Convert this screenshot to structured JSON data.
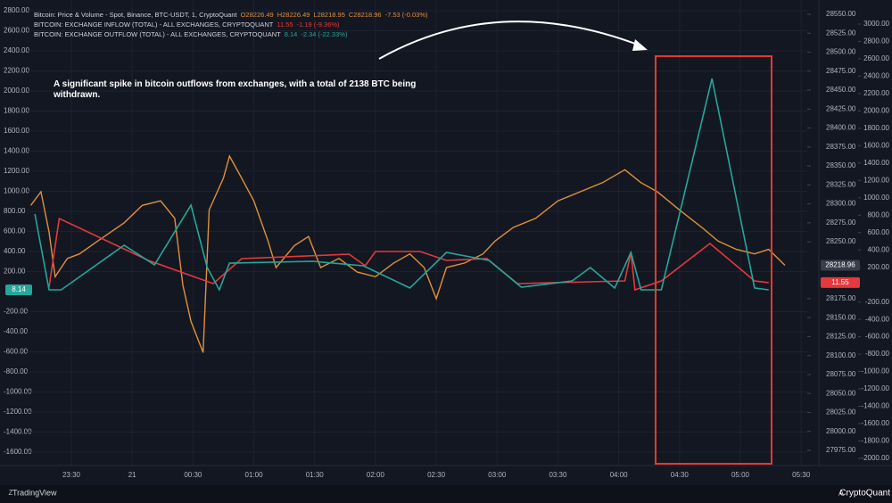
{
  "chart_data": {
    "type": "line",
    "legend_rows": [
      {
        "name": "Bitcoin: Price & Volume - Spot, Binance, BTC-USDT, 1, CryptoQuant",
        "stats": [
          "O28226.49",
          "H28226.49",
          "L28218.95",
          "C28218.96",
          "-7.53 (-0.03%)"
        ]
      },
      {
        "name": "BITCOIN: EXCHANGE INFLOW (TOTAL) - ALL EXCHANGES, CRYPTOQUANT",
        "stats": [
          "11.55",
          "-1.19 (-9.36%)"
        ]
      },
      {
        "name": "BITCOIN: EXCHANGE OUTFLOW (TOTAL) - ALL EXCHANGES, CRYPTOQUANT",
        "stats": [
          "8.14",
          "-2.34 (-22.33%)"
        ]
      }
    ],
    "annotation": "A significant spike in bitcoin outflows from exchanges, with a total of 2138 BTC being withdrawn.",
    "xlim": [
      8,
      393
    ],
    "xticks": [
      {
        "value": 30,
        "label": "23:30"
      },
      {
        "value": 60,
        "label": "21"
      },
      {
        "value": 90,
        "label": "00:30"
      },
      {
        "value": 120,
        "label": "01:00"
      },
      {
        "value": 150,
        "label": "01:30"
      },
      {
        "value": 180,
        "label": "02:00"
      },
      {
        "value": 210,
        "label": "02:30"
      },
      {
        "value": 240,
        "label": "03:00"
      },
      {
        "value": 270,
        "label": "03:30"
      },
      {
        "value": 300,
        "label": "04:00"
      },
      {
        "value": 330,
        "label": "04:30"
      },
      {
        "value": 360,
        "label": "05:00"
      },
      {
        "value": 390,
        "label": "05:30"
      }
    ],
    "ylim": [
      -1600,
      2800
    ],
    "yticks": [
      {
        "value": 2800,
        "label": "2800.00"
      },
      {
        "value": 2600,
        "label": "2600.00"
      },
      {
        "value": 2400,
        "label": "2400.00"
      },
      {
        "value": 2200,
        "label": "2200.00"
      },
      {
        "value": 2000,
        "label": "2000.00"
      },
      {
        "value": 1800,
        "label": "1800.00"
      },
      {
        "value": 1600,
        "label": "1600.00"
      },
      {
        "value": 1400,
        "label": "1400.00"
      },
      {
        "value": 1200,
        "label": "1200.00"
      },
      {
        "value": 1000,
        "label": "1000.00"
      },
      {
        "value": 800,
        "label": "800.00"
      },
      {
        "value": 600,
        "label": "600.00"
      },
      {
        "value": 400,
        "label": "400.00"
      },
      {
        "value": 200,
        "label": "200.00"
      },
      {
        "value": -200,
        "label": "-200.00"
      },
      {
        "value": -400,
        "label": "-400.00"
      },
      {
        "value": -600,
        "label": "-600.00"
      },
      {
        "value": -800,
        "label": "-800.00"
      },
      {
        "value": -1000,
        "label": "-1000.00"
      },
      {
        "value": -1200,
        "label": "-1200.00"
      },
      {
        "value": -1400,
        "label": "-1400.00"
      },
      {
        "value": -1600,
        "label": "-1600.00"
      }
    ],
    "y3lim": [
      27975,
      28550
    ],
    "y3ticks": [
      {
        "value": 28550,
        "label": "28550.00"
      },
      {
        "value": 28525,
        "label": "28525.00"
      },
      {
        "value": 28500,
        "label": "28500.00"
      },
      {
        "value": 28475,
        "label": "28475.00"
      },
      {
        "value": 28450,
        "label": "28450.00"
      },
      {
        "value": 28425,
        "label": "28425.00"
      },
      {
        "value": 28400,
        "label": "28400.00"
      },
      {
        "value": 28375,
        "label": "28375.00"
      },
      {
        "value": 28350,
        "label": "28350.00"
      },
      {
        "value": 28325,
        "label": "28325.00"
      },
      {
        "value": 28300,
        "label": "28300.00"
      },
      {
        "value": 28275,
        "label": "28275.00"
      },
      {
        "value": 28250,
        "label": "28250.00"
      },
      {
        "value": 28175,
        "label": "28175.00"
      },
      {
        "value": 28150,
        "label": "28150.00"
      },
      {
        "value": 28125,
        "label": "28125.00"
      },
      {
        "value": 28100,
        "label": "28100.00"
      },
      {
        "value": 28075,
        "label": "28075.00"
      },
      {
        "value": 28050,
        "label": "28050.00"
      },
      {
        "value": 28025,
        "label": "28025.00"
      },
      {
        "value": 28000,
        "label": "28000.00"
      },
      {
        "value": 27975,
        "label": "27975.00"
      }
    ],
    "y2lim": [
      -2000,
      3000
    ],
    "y2ticks": [
      {
        "value": 3000,
        "label": "3000.00"
      },
      {
        "value": 2800,
        "label": "2800.00"
      },
      {
        "value": 2600,
        "label": "2600.00"
      },
      {
        "value": 2400,
        "label": "2400.00"
      },
      {
        "value": 2200,
        "label": "2200.00"
      },
      {
        "value": 2000,
        "label": "2000.00"
      },
      {
        "value": 1800,
        "label": "1800.00"
      },
      {
        "value": 1600,
        "label": "1600.00"
      },
      {
        "value": 1400,
        "label": "1400.00"
      },
      {
        "value": 1200,
        "label": "1200.00"
      },
      {
        "value": 1000,
        "label": "1000.00"
      },
      {
        "value": 800,
        "label": "800.00"
      },
      {
        "value": 600,
        "label": "600.00"
      },
      {
        "value": 400,
        "label": "400.00"
      },
      {
        "value": 200,
        "label": "200.00"
      },
      {
        "value": -200,
        "label": "-200.00"
      },
      {
        "value": -400,
        "label": "-400.00"
      },
      {
        "value": -600,
        "label": "-600.00"
      },
      {
        "value": -800,
        "label": "-800.00"
      },
      {
        "value": -1000,
        "label": "-1000.00"
      },
      {
        "value": -1200,
        "label": "-1200.00"
      },
      {
        "value": -1400,
        "label": "-1400.00"
      },
      {
        "value": -1600,
        "label": "-1600.00"
      },
      {
        "value": -1800,
        "label": "-1800.00"
      },
      {
        "value": -2000,
        "label": "-2000.00"
      }
    ],
    "grid": true,
    "series": [
      {
        "name": "Bitcoin: Price & Volume - Spot, Binance, BTC-USDT, 1, CryptoQuant",
        "color": "#e0913a",
        "axis": "y3",
        "last_label": "28218.96",
        "x": [
          10,
          15,
          19,
          22,
          28,
          34,
          43,
          56,
          65,
          74,
          81,
          85,
          89,
          95,
          98,
          105,
          108,
          114,
          120,
          127,
          131,
          140,
          147,
          153,
          162,
          171,
          180,
          189,
          197,
          204,
          210,
          215,
          224,
          233,
          239,
          248,
          259,
          270,
          281,
          292,
          303,
          311,
          319,
          330,
          341,
          349,
          358,
          367,
          374,
          382
        ],
        "values": [
          28298,
          28316,
          28263,
          28204,
          28228,
          28234,
          28251,
          28275,
          28298,
          28304,
          28281,
          28193,
          28145,
          28104,
          28292,
          28334,
          28363,
          28334,
          28304,
          28251,
          28216,
          28245,
          28257,
          28216,
          28228,
          28210,
          28204,
          28222,
          28234,
          28216,
          28175,
          28216,
          28222,
          28234,
          28251,
          28269,
          28281,
          28304,
          28316,
          28328,
          28345,
          28328,
          28316,
          28292,
          28269,
          28251,
          28240,
          28234,
          28240,
          28219
        ]
      },
      {
        "name": "BITCOIN: EXCHANGE INFLOW (TOTAL) - ALL EXCHANGES, CRYPTOQUANT",
        "color": "#e5393b",
        "axis": "y",
        "last_label": "11.55",
        "x": [
          19,
          24,
          68,
          100,
          114,
          167,
          175,
          180,
          202,
          215,
          235,
          250,
          303,
          306,
          308,
          321,
          345,
          367,
          374
        ],
        "values": [
          44,
          729,
          311,
          80,
          329,
          373,
          258,
          400,
          400,
          311,
          329,
          80,
          107,
          391,
          18,
          107,
          480,
          107,
          90
        ]
      },
      {
        "name": "BITCOIN: EXCHANGE OUTFLOW (TOTAL) - ALL EXCHANGES, CRYPTOQUANT",
        "color": "#26a69a",
        "axis": "y",
        "last_label": "8.14",
        "x": [
          12,
          19,
          25,
          56,
          71,
          89,
          97,
          103,
          108,
          149,
          174,
          197,
          215,
          236,
          252,
          277,
          286,
          298,
          306,
          311,
          321,
          346,
          367,
          374
        ],
        "values": [
          773,
          18,
          18,
          462,
          267,
          862,
          240,
          18,
          284,
          302,
          258,
          36,
          391,
          311,
          44,
          107,
          240,
          36,
          391,
          18,
          18,
          2124,
          36,
          18
        ]
      }
    ],
    "footer": {
      "left_icon": "Z",
      "brand_left": "TradingView",
      "brand_right": "CryptoQuant",
      "right_icon": "A"
    }
  }
}
